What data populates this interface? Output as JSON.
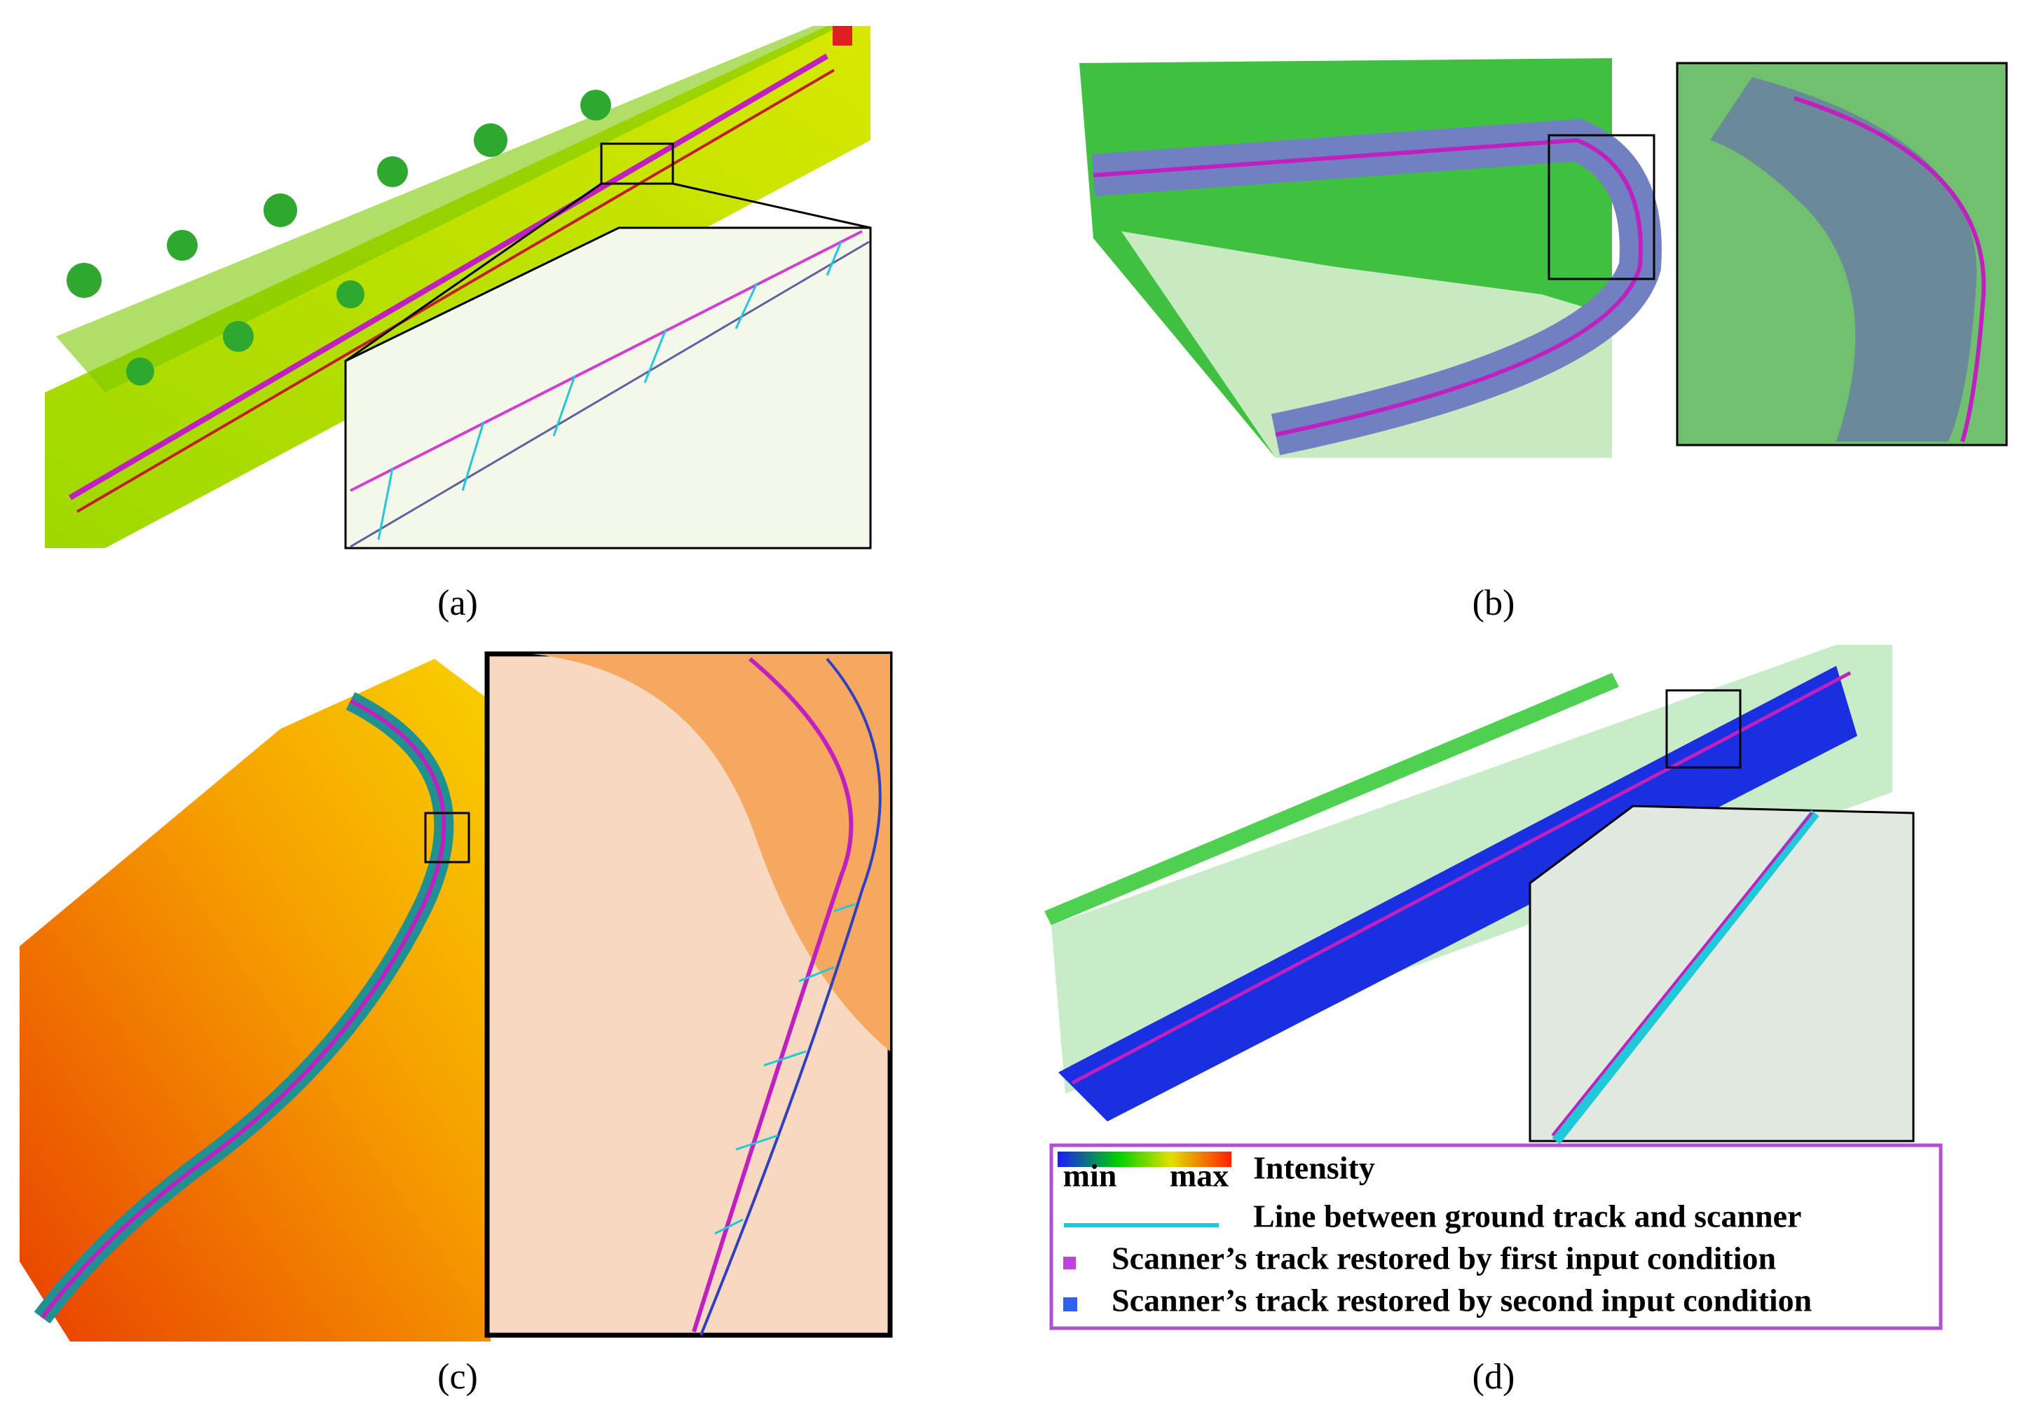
{
  "panels": [
    {
      "caption": "(a)"
    },
    {
      "caption": "(b)"
    },
    {
      "caption": "(c)"
    },
    {
      "caption": "(d)"
    }
  ],
  "legend": {
    "min": "min",
    "max": "max",
    "intensity": "Intensity",
    "line": "Line between ground track  and scanner",
    "first": "Scanner’s track restored by  first  input condition",
    "second": "Scanner’s track restored by  second input condition"
  }
}
